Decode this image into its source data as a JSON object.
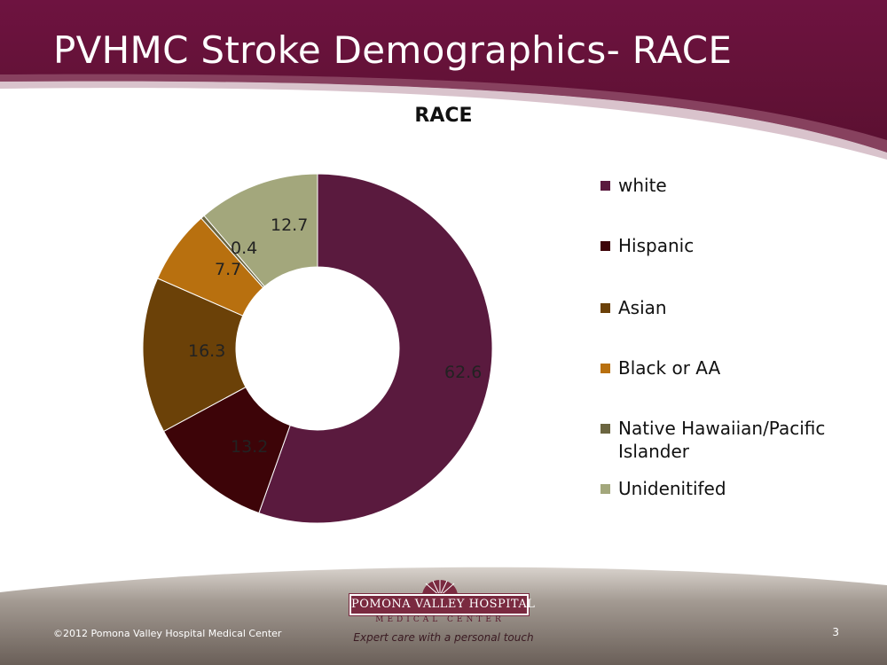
{
  "slide": {
    "title": "PVHMC Stroke Demographics- RACE",
    "footer_copyright": "©2012 Pomona Valley Hospital Medical Center",
    "page_number": "3",
    "logo_name": "POMONA VALLEY HOSPITAL",
    "logo_subtitle": "MEDICAL CENTER",
    "tagline": "Expert care with a personal touch"
  },
  "chart_data": {
    "type": "pie",
    "variant": "doughnut",
    "title": "RACE",
    "legend_position": "right",
    "categories": [
      "white",
      "Hispanic",
      "Asian",
      "Black or AA",
      "Native Hawaiian/Pacific Islander",
      "Unidenitifed"
    ],
    "values": [
      62.6,
      13.2,
      16.3,
      7.7,
      0.4,
      12.7
    ],
    "data_labels": [
      "62.6",
      "13.2",
      "16.3",
      "7.7",
      "0.4",
      "12.7"
    ],
    "colors": [
      "#5a1a3e",
      "#3d0408",
      "#6b4108",
      "#b8700f",
      "#6b6540",
      "#a3a77c"
    ]
  }
}
